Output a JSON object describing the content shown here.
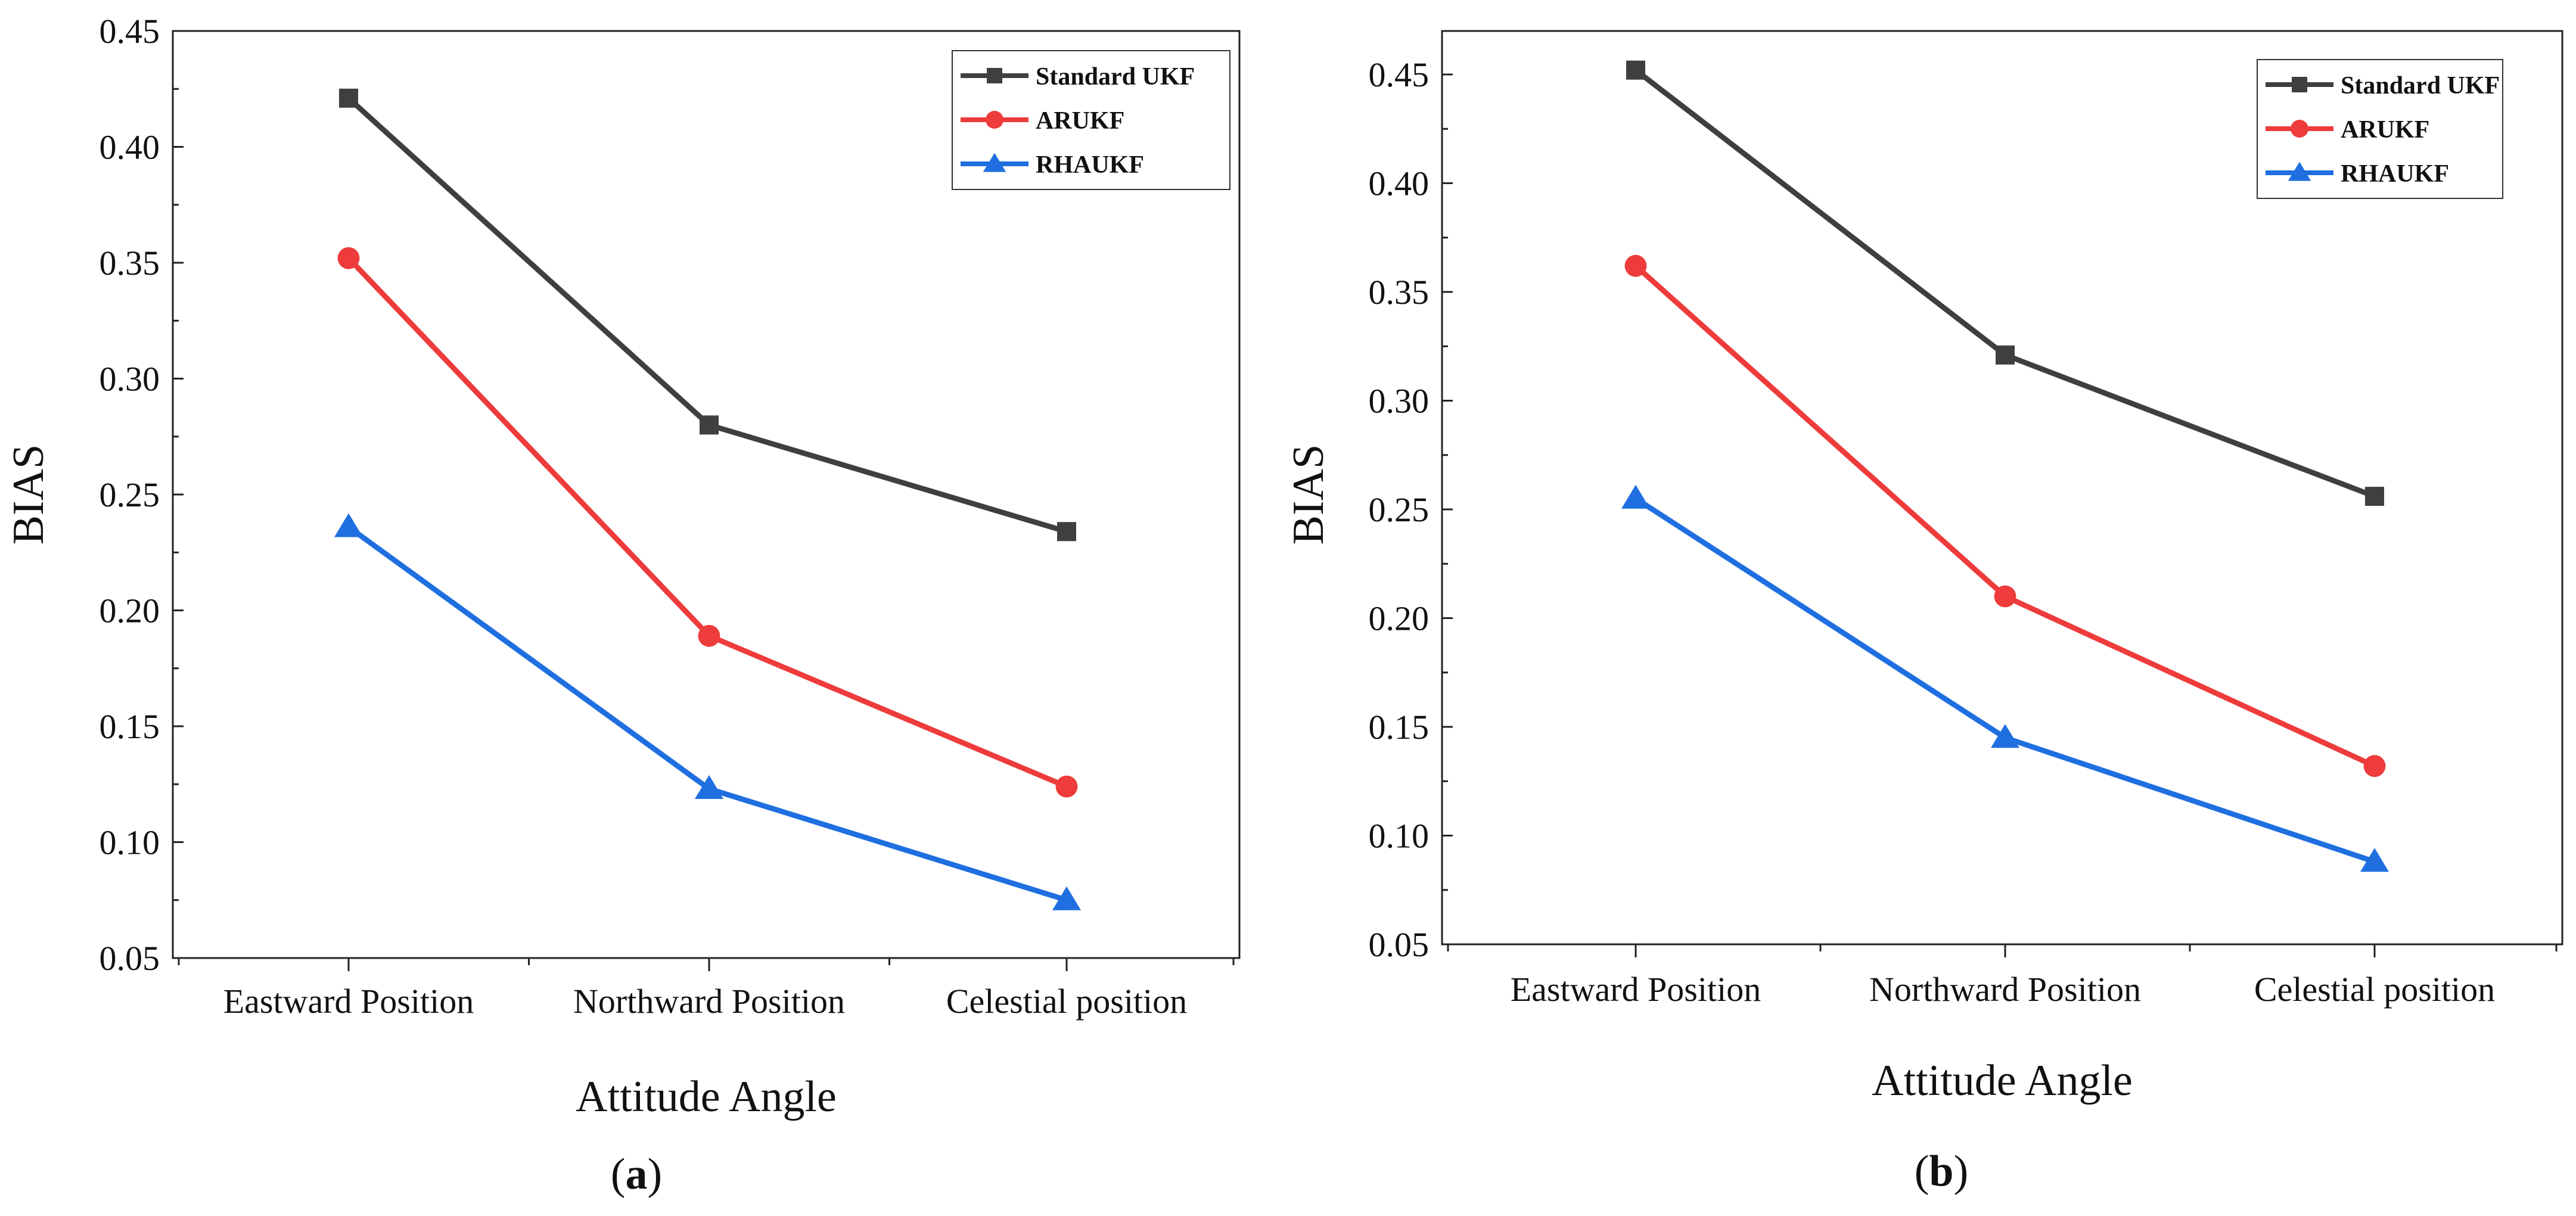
{
  "chart_data": [
    {
      "type": "line",
      "panel_label": "a",
      "categories": [
        "Eastward Position",
        "Northward Position",
        "Celestial position"
      ],
      "xlabel": "Attitude Angle",
      "ylabel": "BIAS",
      "ylim": [
        0.05,
        0.45
      ],
      "yticks": [
        "0.05",
        "0.10",
        "0.15",
        "0.20",
        "0.25",
        "0.30",
        "0.35",
        "0.40",
        "0.45"
      ],
      "legend_position": "top-right",
      "series": [
        {
          "name": "Standard UKF",
          "marker": "square",
          "color": "#3f3f3f",
          "values": [
            0.421,
            0.28,
            0.234
          ]
        },
        {
          "name": "ARUKF",
          "marker": "circle",
          "color": "#ee3b3b",
          "values": [
            0.352,
            0.189,
            0.124
          ]
        },
        {
          "name": "RHAUKF",
          "marker": "triangle",
          "color": "#1f6fe0",
          "values": [
            0.236,
            0.123,
            0.075
          ]
        }
      ]
    },
    {
      "type": "line",
      "panel_label": "b",
      "categories": [
        "Eastward Position",
        "Northward Position",
        "Celestial position"
      ],
      "xlabel": "Attitude Angle",
      "ylabel": "BIAS",
      "ylim": [
        0.05,
        0.47
      ],
      "yticks": [
        "0.05",
        "0.10",
        "0.15",
        "0.20",
        "0.25",
        "0.30",
        "0.35",
        "0.40",
        "0.45"
      ],
      "legend_position": "top-right",
      "series": [
        {
          "name": "Standard UKF",
          "marker": "square",
          "color": "#3f3f3f",
          "values": [
            0.452,
            0.321,
            0.256
          ]
        },
        {
          "name": "ARUKF",
          "marker": "circle",
          "color": "#ee3b3b",
          "values": [
            0.362,
            0.21,
            0.132
          ]
        },
        {
          "name": "RHAUKF",
          "marker": "triangle",
          "color": "#1f6fe0",
          "values": [
            0.255,
            0.145,
            0.088
          ]
        }
      ]
    }
  ]
}
